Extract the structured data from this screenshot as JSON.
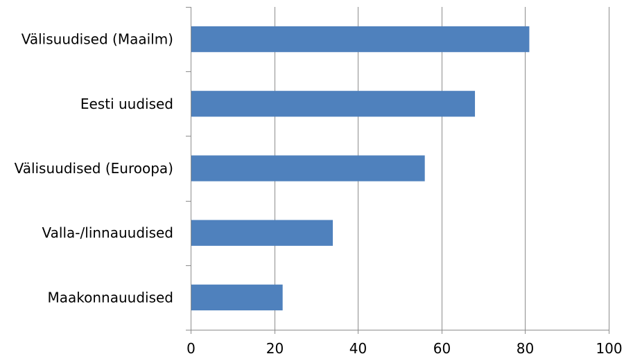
{
  "chart_data": {
    "type": "bar",
    "orientation": "horizontal",
    "title": "",
    "xlabel": "",
    "ylabel": "",
    "categories": [
      "Välisuudised (Maailm)",
      "Eesti uudised",
      "Välisuudised (Euroopa)",
      "Valla-/linnauudised",
      "Maakonnauudised"
    ],
    "values": [
      81,
      68,
      56,
      34,
      22
    ],
    "xlim": [
      0,
      100
    ],
    "xticks": [
      0,
      20,
      40,
      60,
      80,
      100
    ],
    "tick_labels": [
      "0",
      "20",
      "40",
      "60",
      "80",
      "100"
    ],
    "grid": true,
    "legend": "none",
    "bar_color": "#4f81bd",
    "grid_color": "#8c8c8c"
  }
}
